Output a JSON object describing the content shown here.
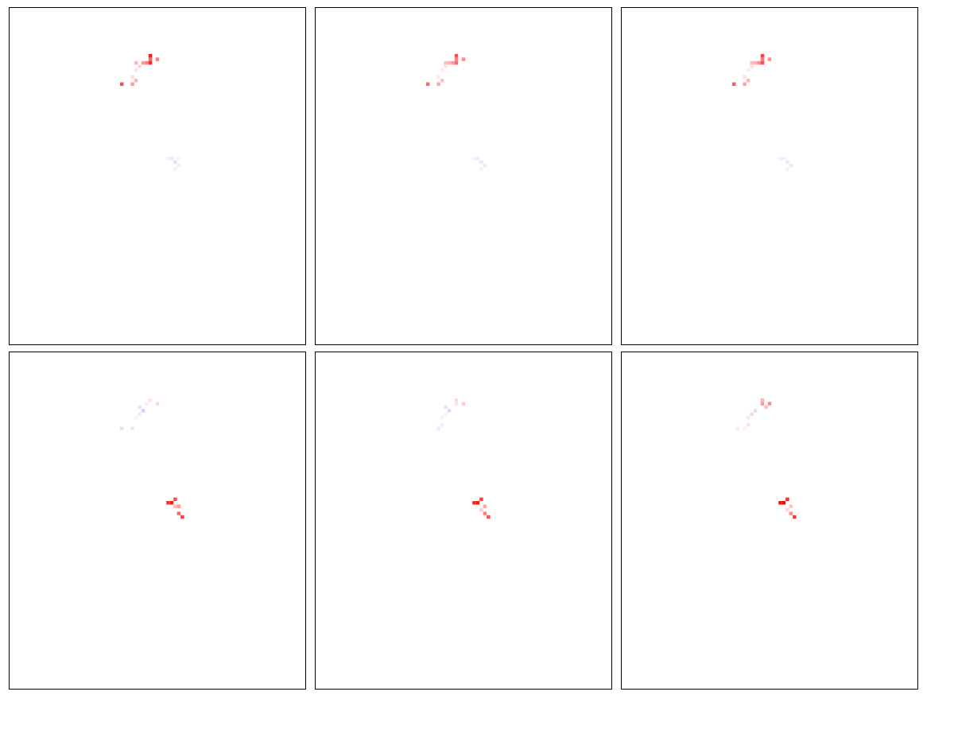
{
  "chart_data": [
    {
      "type": "heatmap",
      "title": "",
      "xlabel": "",
      "ylabel": "",
      "grid": false,
      "legend": "none",
      "colormap": {
        "negative": "#0000ff",
        "zero": "#ffffff",
        "positive": "#ff0000"
      },
      "value_range": [
        -1,
        1
      ],
      "x_range": [
        0,
        83
      ],
      "y_range": [
        0,
        95
      ],
      "cells": [
        {
          "x": 39,
          "y": 13,
          "value": 0.9
        },
        {
          "x": 39,
          "y": 14,
          "value": 0.6
        },
        {
          "x": 38,
          "y": 15,
          "value": 0.5
        },
        {
          "x": 39,
          "y": 15,
          "value": 0.85
        },
        {
          "x": 37,
          "y": 15,
          "value": 0.4
        },
        {
          "x": 35,
          "y": 15,
          "value": 0.3
        },
        {
          "x": 41,
          "y": 14,
          "value": 0.5
        },
        {
          "x": 36,
          "y": 16,
          "value": 0.15
        },
        {
          "x": 35,
          "y": 17,
          "value": 0.1
        },
        {
          "x": 34,
          "y": 19,
          "value": 0.15
        },
        {
          "x": 35,
          "y": 20,
          "value": 0.3
        },
        {
          "x": 34,
          "y": 21,
          "value": 0.4
        },
        {
          "x": 31,
          "y": 21,
          "value": 0.7
        },
        {
          "x": 45,
          "y": 42,
          "value": -0.08
        },
        {
          "x": 44,
          "y": 42,
          "value": -0.06
        },
        {
          "x": 47,
          "y": 42,
          "value": -0.05
        },
        {
          "x": 46,
          "y": 43,
          "value": -0.12
        },
        {
          "x": 47,
          "y": 44,
          "value": -0.07
        },
        {
          "x": 46,
          "y": 45,
          "value": -0.06
        }
      ]
    },
    {
      "type": "heatmap",
      "title": "",
      "xlabel": "",
      "ylabel": "",
      "grid": false,
      "legend": "none",
      "colormap": {
        "negative": "#0000ff",
        "zero": "#ffffff",
        "positive": "#ff0000"
      },
      "value_range": [
        -1,
        1
      ],
      "x_range": [
        0,
        83
      ],
      "y_range": [
        0,
        95
      ],
      "cells": [
        {
          "x": 39,
          "y": 13,
          "value": 0.7
        },
        {
          "x": 39,
          "y": 14,
          "value": 0.5
        },
        {
          "x": 38,
          "y": 15,
          "value": 0.4
        },
        {
          "x": 39,
          "y": 15,
          "value": 0.6
        },
        {
          "x": 37,
          "y": 15,
          "value": 0.3
        },
        {
          "x": 36,
          "y": 15,
          "value": 0.25
        },
        {
          "x": 41,
          "y": 14,
          "value": 0.45
        },
        {
          "x": 36,
          "y": 16,
          "value": 0.12
        },
        {
          "x": 35,
          "y": 17,
          "value": 0.08
        },
        {
          "x": 34,
          "y": 19,
          "value": 0.1
        },
        {
          "x": 35,
          "y": 20,
          "value": 0.25
        },
        {
          "x": 34,
          "y": 21,
          "value": 0.35
        },
        {
          "x": 31,
          "y": 21,
          "value": 0.6
        },
        {
          "x": 45,
          "y": 42,
          "value": -0.07
        },
        {
          "x": 44,
          "y": 42,
          "value": -0.05
        },
        {
          "x": 46,
          "y": 43,
          "value": -0.1
        },
        {
          "x": 47,
          "y": 44,
          "value": -0.08
        },
        {
          "x": 46,
          "y": 45,
          "value": -0.06
        }
      ]
    },
    {
      "type": "heatmap",
      "title": "",
      "xlabel": "",
      "ylabel": "",
      "grid": false,
      "legend": "none",
      "colormap": {
        "negative": "#0000ff",
        "zero": "#ffffff",
        "positive": "#ff0000"
      },
      "value_range": [
        -1,
        1
      ],
      "x_range": [
        0,
        83
      ],
      "y_range": [
        0,
        95
      ],
      "cells": [
        {
          "x": 39,
          "y": 13,
          "value": 0.75
        },
        {
          "x": 39,
          "y": 14,
          "value": 0.55
        },
        {
          "x": 38,
          "y": 15,
          "value": 0.45
        },
        {
          "x": 39,
          "y": 15,
          "value": 0.7
        },
        {
          "x": 37,
          "y": 15,
          "value": 0.3
        },
        {
          "x": 36,
          "y": 15,
          "value": 0.25
        },
        {
          "x": 41,
          "y": 14,
          "value": 0.45
        },
        {
          "x": 36,
          "y": 16,
          "value": 0.12
        },
        {
          "x": 35,
          "y": 17,
          "value": 0.08
        },
        {
          "x": 34,
          "y": 19,
          "value": 0.12
        },
        {
          "x": 35,
          "y": 20,
          "value": 0.28
        },
        {
          "x": 34,
          "y": 21,
          "value": 0.35
        },
        {
          "x": 31,
          "y": 21,
          "value": 0.65
        },
        {
          "x": 45,
          "y": 42,
          "value": -0.06
        },
        {
          "x": 44,
          "y": 42,
          "value": -0.05
        },
        {
          "x": 46,
          "y": 43,
          "value": -0.1
        },
        {
          "x": 47,
          "y": 44,
          "value": -0.08
        },
        {
          "x": 46,
          "y": 45,
          "value": -0.05
        }
      ]
    },
    {
      "type": "heatmap",
      "title": "",
      "xlabel": "",
      "ylabel": "",
      "grid": false,
      "legend": "none",
      "colormap": {
        "negative": "#0000ff",
        "zero": "#ffffff",
        "positive": "#ff0000"
      },
      "value_range": [
        -1,
        1
      ],
      "x_range": [
        0,
        83
      ],
      "y_range": [
        0,
        95
      ],
      "cells": [
        {
          "x": 39,
          "y": 13,
          "value": 0.12
        },
        {
          "x": 41,
          "y": 14,
          "value": 0.15
        },
        {
          "x": 38,
          "y": 14,
          "value": 0.08
        },
        {
          "x": 36,
          "y": 15,
          "value": -0.1
        },
        {
          "x": 37,
          "y": 16,
          "value": -0.18
        },
        {
          "x": 36,
          "y": 17,
          "value": -0.08
        },
        {
          "x": 35,
          "y": 18,
          "value": 0.06
        },
        {
          "x": 34,
          "y": 21,
          "value": -0.1
        },
        {
          "x": 31,
          "y": 21,
          "value": -0.12
        },
        {
          "x": 45,
          "y": 42,
          "value": 0.9
        },
        {
          "x": 44,
          "y": 42,
          "value": 0.8
        },
        {
          "x": 46,
          "y": 43,
          "value": 0.25
        },
        {
          "x": 47,
          "y": 43,
          "value": 0.4
        },
        {
          "x": 47,
          "y": 45,
          "value": 0.6
        },
        {
          "x": 48,
          "y": 46,
          "value": 0.75
        },
        {
          "x": 46,
          "y": 41,
          "value": 0.7
        }
      ]
    },
    {
      "type": "heatmap",
      "title": "",
      "xlabel": "",
      "ylabel": "",
      "grid": false,
      "legend": "none",
      "colormap": {
        "negative": "#0000ff",
        "zero": "#ffffff",
        "positive": "#ff0000"
      },
      "value_range": [
        -1,
        1
      ],
      "x_range": [
        0,
        83
      ],
      "y_range": [
        0,
        95
      ],
      "cells": [
        {
          "x": 39,
          "y": 13,
          "value": 0.15
        },
        {
          "x": 41,
          "y": 14,
          "value": 0.2
        },
        {
          "x": 39,
          "y": 14,
          "value": 0.1
        },
        {
          "x": 36,
          "y": 15,
          "value": -0.1
        },
        {
          "x": 37,
          "y": 16,
          "value": -0.15
        },
        {
          "x": 36,
          "y": 17,
          "value": 0.06
        },
        {
          "x": 35,
          "y": 18,
          "value": -0.05
        },
        {
          "x": 35,
          "y": 20,
          "value": -0.06
        },
        {
          "x": 34,
          "y": 21,
          "value": -0.08
        },
        {
          "x": 45,
          "y": 42,
          "value": 0.9
        },
        {
          "x": 44,
          "y": 42,
          "value": 0.85
        },
        {
          "x": 46,
          "y": 41,
          "value": 0.75
        },
        {
          "x": 47,
          "y": 43,
          "value": 0.35
        },
        {
          "x": 47,
          "y": 45,
          "value": 0.5
        },
        {
          "x": 48,
          "y": 46,
          "value": 0.7
        },
        {
          "x": 46,
          "y": 44,
          "value": 0.2
        }
      ]
    },
    {
      "type": "heatmap",
      "title": "",
      "xlabel": "",
      "ylabel": "",
      "grid": false,
      "legend": "none",
      "colormap": {
        "negative": "#0000ff",
        "zero": "#ffffff",
        "positive": "#ff0000"
      },
      "value_range": [
        -1,
        1
      ],
      "x_range": [
        0,
        83
      ],
      "y_range": [
        0,
        95
      ],
      "cells": [
        {
          "x": 39,
          "y": 13,
          "value": 0.3
        },
        {
          "x": 39,
          "y": 14,
          "value": 0.4
        },
        {
          "x": 41,
          "y": 14,
          "value": 0.45
        },
        {
          "x": 40,
          "y": 15,
          "value": 0.25
        },
        {
          "x": 37,
          "y": 16,
          "value": -0.12
        },
        {
          "x": 36,
          "y": 17,
          "value": 0.15
        },
        {
          "x": 35,
          "y": 18,
          "value": 0.1
        },
        {
          "x": 35,
          "y": 20,
          "value": 0.12
        },
        {
          "x": 32,
          "y": 21,
          "value": 0.08
        },
        {
          "x": 34,
          "y": 21,
          "value": 0.06
        },
        {
          "x": 45,
          "y": 42,
          "value": 1.0
        },
        {
          "x": 44,
          "y": 42,
          "value": 0.95
        },
        {
          "x": 46,
          "y": 41,
          "value": 0.85
        },
        {
          "x": 47,
          "y": 43,
          "value": 0.25
        },
        {
          "x": 47,
          "y": 45,
          "value": 0.45
        },
        {
          "x": 48,
          "y": 46,
          "value": 0.8
        },
        {
          "x": 46,
          "y": 44,
          "value": 0.15
        }
      ]
    }
  ]
}
